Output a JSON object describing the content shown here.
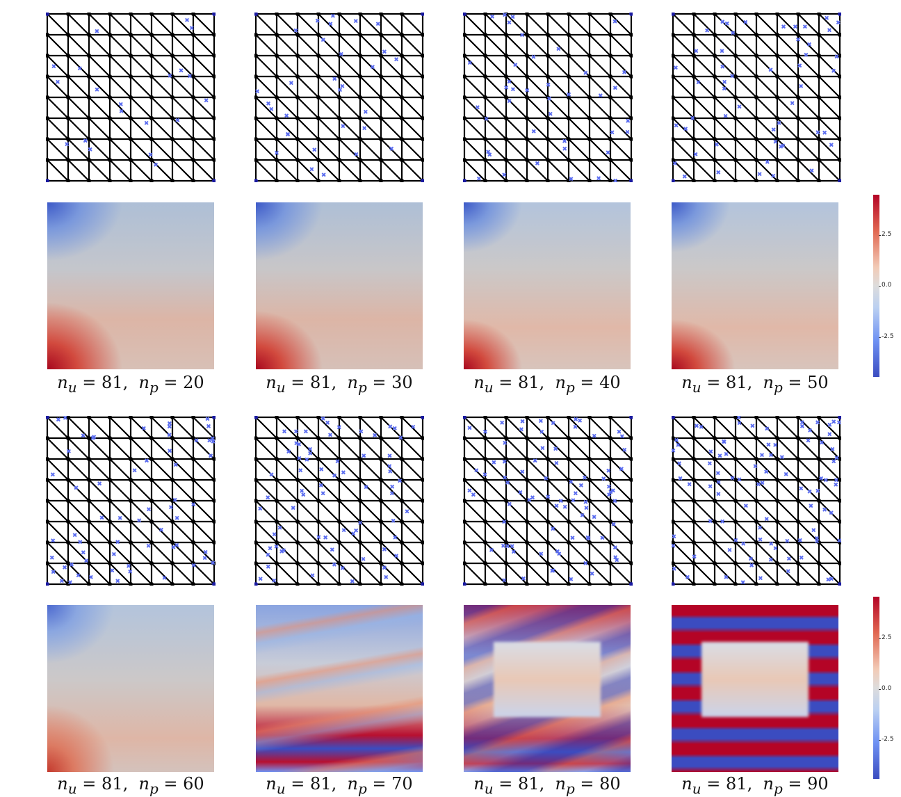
{
  "panels": [
    {
      "nu": "81",
      "np": "20"
    },
    {
      "nu": "81",
      "np": "30"
    },
    {
      "nu": "81",
      "np": "40"
    },
    {
      "nu": "81",
      "np": "50"
    },
    {
      "nu": "81",
      "np": "60"
    },
    {
      "nu": "81",
      "np": "70"
    },
    {
      "nu": "81",
      "np": "80"
    },
    {
      "nu": "81",
      "np": "90"
    }
  ],
  "colorbar": {
    "ticks": [
      "2.5",
      "0.0",
      "-2.5"
    ],
    "colors": [
      "#b40426",
      "#dddcdc",
      "#3b4cc0"
    ]
  },
  "mesh": {
    "grid_divisions": 8,
    "edge_color": "#000000",
    "node_color": "#000000",
    "boundary_node_color": "#1a1aa0",
    "pressure_dof_color": "#5a6cf0"
  }
}
